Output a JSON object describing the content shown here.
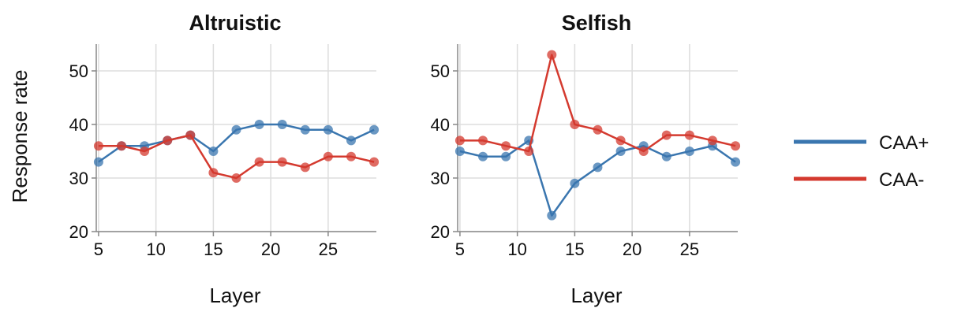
{
  "chart_data": [
    {
      "type": "line",
      "title": "Altruistic",
      "xlabel": "Layer",
      "ylabel": "Response rate",
      "xlim": [
        4.8,
        29.2
      ],
      "ylim": [
        20,
        55
      ],
      "xticks": [
        5,
        10,
        15,
        20,
        25
      ],
      "yticks": [
        20,
        30,
        40,
        50
      ],
      "grid": true,
      "x": [
        5,
        7,
        9,
        11,
        13,
        15,
        17,
        19,
        21,
        23,
        25,
        27,
        29
      ],
      "series": [
        {
          "name": "CAA+",
          "color": "#3a76af",
          "values": [
            33,
            36,
            36,
            37,
            38,
            35,
            39,
            40,
            40,
            39,
            39,
            37,
            39
          ]
        },
        {
          "name": "CAA-",
          "color": "#d43a2f",
          "values": [
            36,
            36,
            35,
            37,
            38,
            31,
            30,
            33,
            33,
            32,
            34,
            34,
            33
          ]
        }
      ]
    },
    {
      "type": "line",
      "title": "Selfish",
      "xlabel": "Layer",
      "ylabel": "",
      "xlim": [
        4.8,
        29.2
      ],
      "ylim": [
        20,
        55
      ],
      "xticks": [
        5,
        10,
        15,
        20,
        25
      ],
      "yticks": [
        20,
        30,
        40,
        50
      ],
      "grid": true,
      "x": [
        5,
        7,
        9,
        11,
        13,
        15,
        17,
        19,
        21,
        23,
        25,
        27,
        29
      ],
      "series": [
        {
          "name": "CAA+",
          "color": "#3a76af",
          "values": [
            35,
            34,
            34,
            37,
            23,
            29,
            32,
            35,
            36,
            34,
            35,
            36,
            33
          ]
        },
        {
          "name": "CAA-",
          "color": "#d43a2f",
          "values": [
            37,
            37,
            36,
            35,
            53,
            40,
            39,
            37,
            35,
            38,
            38,
            37,
            36
          ]
        }
      ]
    }
  ],
  "legend": {
    "placement": "right",
    "items": [
      {
        "label": "CAA+",
        "color": "#3a76af"
      },
      {
        "label": "CAA-",
        "color": "#d43a2f"
      }
    ]
  }
}
